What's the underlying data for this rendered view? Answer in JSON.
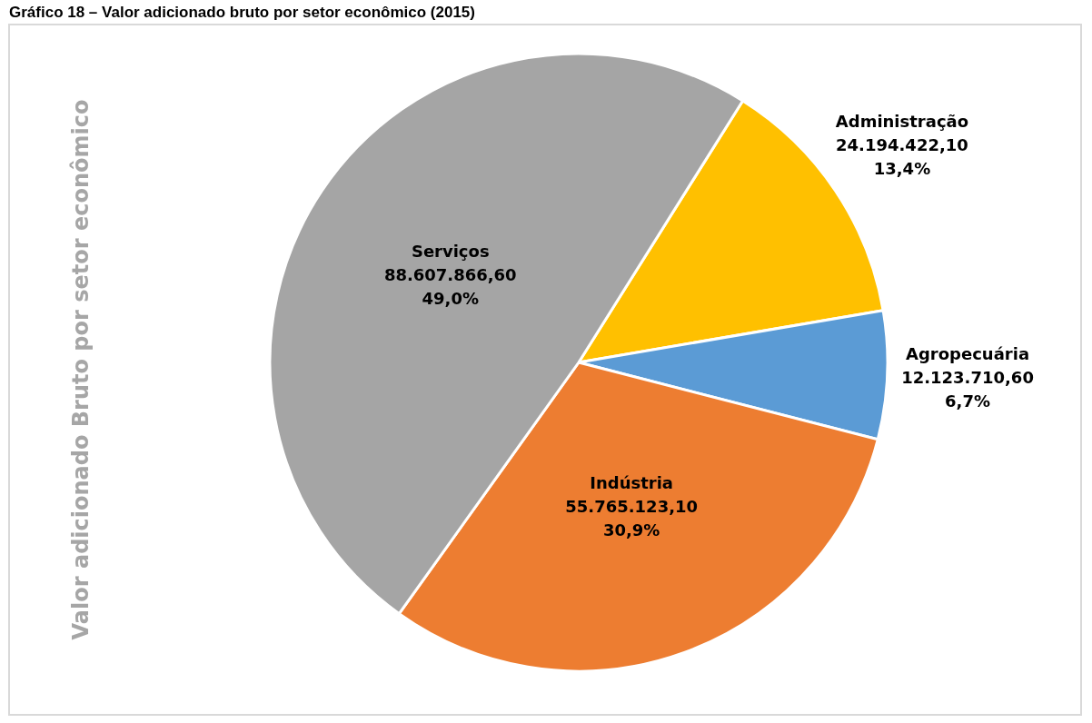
{
  "chart_data": {
    "type": "pie",
    "title": "Gráfico 18 – Valor adicionado bruto por setor econômico (2015)",
    "ylabel": "Valor adicionado Bruto por setor econômico",
    "categories": [
      "Administração",
      "Agropecuária",
      "Indústria",
      "Serviços"
    ],
    "values": [
      24194422.1,
      12123710.6,
      55765123.1,
      88607866.6
    ],
    "colors": [
      "#ffc000",
      "#5b9bd5",
      "#ed7d31",
      "#a5a5a5"
    ],
    "value_labels": [
      "24.194.422,10\n13,4%",
      "12.123.710,60\n6,7%",
      "55.765.123,10\n30,9%",
      "88.607.866,60\n49,0%"
    ]
  }
}
